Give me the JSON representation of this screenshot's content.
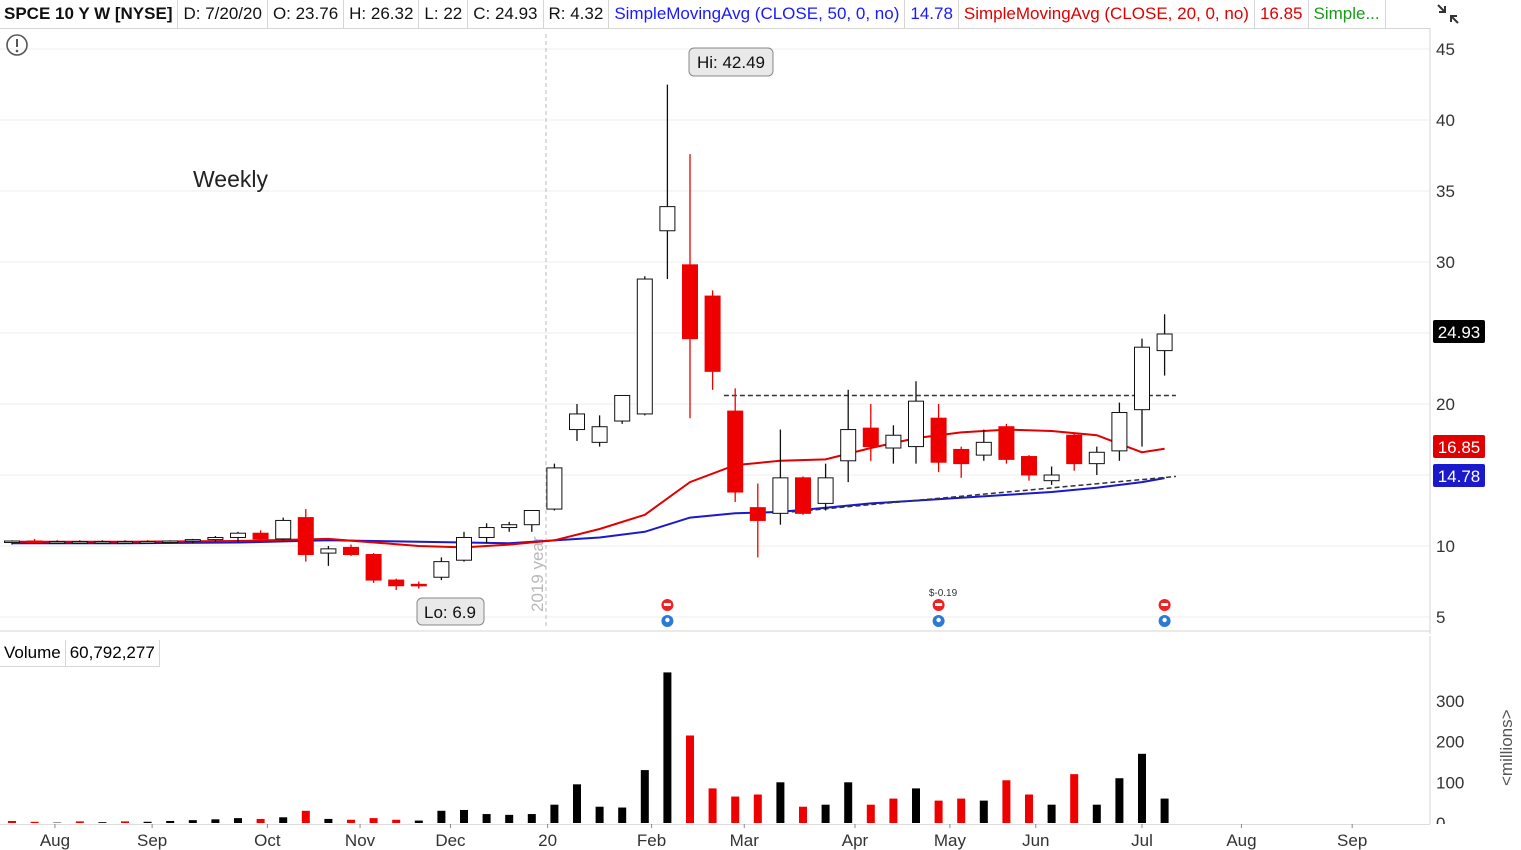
{
  "header": {
    "symbol": "SPCE 10 Y W [NYSE]",
    "date": "D: 7/20/20",
    "open": "O: 23.76",
    "high": "H: 26.32",
    "low": "L: 22",
    "close": "C: 24.93",
    "range": "R: 4.32",
    "sma50_label": "SimpleMovingAvg (CLOSE, 50, 0, no)",
    "sma50_value": "14.78",
    "sma20_label": "SimpleMovingAvg (CLOSE, 20, 0, no)",
    "sma20_value": "16.85",
    "sma_more": "Simple..."
  },
  "colors": {
    "up": "#ffffff",
    "down": "#ee0000",
    "sma20": "#e00000",
    "sma50": "#1a1acc",
    "grid": "#dddddd",
    "volume_up": "#000000",
    "volume_down": "#ee0000"
  },
  "annotations": {
    "weekly": "Weekly",
    "hi": "Hi: 42.49",
    "lo": "Lo: 6.9",
    "year_marker": "2019 year",
    "dividend": "$-0.19",
    "last_price": "24.93",
    "sma20_tag": "16.85",
    "sma50_tag": "14.78"
  },
  "volume": {
    "label": "Volume",
    "value": "60,792,277",
    "unit_label": "<millions>"
  },
  "chart_data": [
    {
      "type": "candlestick",
      "title": "SPCE 10 Y W [NYSE]",
      "y_ticks": [
        5,
        10,
        15,
        20,
        25,
        30,
        35,
        40,
        45
      ],
      "y_tick_labels": [
        "5",
        "10",
        "20",
        "30",
        "35",
        "40",
        "45"
      ],
      "ylim": [
        4.5,
        45.5
      ],
      "x_tick_labels": [
        "Aug",
        "Sep",
        "Oct",
        "Nov",
        "Dec",
        "20",
        "Feb",
        "Mar",
        "Apr",
        "May",
        "Jun",
        "Jul",
        "Aug",
        "Sep"
      ],
      "candles": [
        {
          "date": "2019-07-22",
          "o": 10.3,
          "h": 10.4,
          "l": 10.1,
          "c": 10.35
        },
        {
          "date": "2019-07-29",
          "o": 10.35,
          "h": 10.5,
          "l": 10.2,
          "c": 10.3
        },
        {
          "date": "2019-08-05",
          "o": 10.3,
          "h": 10.4,
          "l": 10.2,
          "c": 10.3
        },
        {
          "date": "2019-08-12",
          "o": 10.3,
          "h": 10.4,
          "l": 10.15,
          "c": 10.3
        },
        {
          "date": "2019-08-19",
          "o": 10.3,
          "h": 10.4,
          "l": 10.2,
          "c": 10.3
        },
        {
          "date": "2019-08-26",
          "o": 10.3,
          "h": 10.4,
          "l": 10.2,
          "c": 10.3
        },
        {
          "date": "2019-09-02",
          "o": 10.3,
          "h": 10.4,
          "l": 10.2,
          "c": 10.3
        },
        {
          "date": "2019-09-09",
          "o": 10.3,
          "h": 10.4,
          "l": 10.2,
          "c": 10.35
        },
        {
          "date": "2019-09-16",
          "o": 10.35,
          "h": 10.5,
          "l": 10.2,
          "c": 10.45
        },
        {
          "date": "2019-09-23",
          "o": 10.45,
          "h": 10.7,
          "l": 10.3,
          "c": 10.6
        },
        {
          "date": "2019-09-30",
          "o": 10.6,
          "h": 11.0,
          "l": 10.3,
          "c": 10.9
        },
        {
          "date": "2019-10-07",
          "o": 10.9,
          "h": 11.1,
          "l": 10.4,
          "c": 10.5
        },
        {
          "date": "2019-10-14",
          "o": 10.5,
          "h": 12.0,
          "l": 10.4,
          "c": 11.8
        },
        {
          "date": "2019-10-21",
          "o": 12.0,
          "h": 12.6,
          "l": 8.9,
          "c": 9.4
        },
        {
          "date": "2019-10-28",
          "o": 9.5,
          "h": 10.0,
          "l": 8.6,
          "c": 9.8
        },
        {
          "date": "2019-11-04",
          "o": 9.9,
          "h": 10.1,
          "l": 9.3,
          "c": 9.4
        },
        {
          "date": "2019-11-11",
          "o": 9.4,
          "h": 9.5,
          "l": 7.4,
          "c": 7.6
        },
        {
          "date": "2019-11-18",
          "o": 7.6,
          "h": 7.7,
          "l": 6.9,
          "c": 7.2
        },
        {
          "date": "2019-11-25",
          "o": 7.3,
          "h": 7.5,
          "l": 7.0,
          "c": 7.2
        },
        {
          "date": "2019-12-02",
          "o": 7.8,
          "h": 9.2,
          "l": 7.6,
          "c": 8.9
        },
        {
          "date": "2019-12-09",
          "o": 9.0,
          "h": 11.0,
          "l": 8.9,
          "c": 10.6
        },
        {
          "date": "2019-12-16",
          "o": 10.6,
          "h": 11.6,
          "l": 10.2,
          "c": 11.3
        },
        {
          "date": "2019-12-23",
          "o": 11.3,
          "h": 11.7,
          "l": 11.0,
          "c": 11.5
        },
        {
          "date": "2019-12-30",
          "o": 11.5,
          "h": 12.5,
          "l": 11.0,
          "c": 12.5
        },
        {
          "date": "2020-01-06",
          "o": 12.6,
          "h": 15.8,
          "l": 12.5,
          "c": 15.5
        },
        {
          "date": "2020-01-13",
          "o": 18.2,
          "h": 20.0,
          "l": 17.4,
          "c": 19.3
        },
        {
          "date": "2020-01-20",
          "o": 17.3,
          "h": 19.2,
          "l": 17.0,
          "c": 18.4
        },
        {
          "date": "2020-01-27",
          "o": 18.8,
          "h": 20.2,
          "l": 18.6,
          "c": 20.6
        },
        {
          "date": "2020-02-03",
          "o": 19.3,
          "h": 29.0,
          "l": 19.2,
          "c": 28.8
        },
        {
          "date": "2020-02-10",
          "o": 32.2,
          "h": 42.49,
          "l": 28.8,
          "c": 33.9
        },
        {
          "date": "2020-02-17",
          "o": 29.8,
          "h": 37.6,
          "l": 19.0,
          "c": 24.6
        },
        {
          "date": "2020-02-24",
          "o": 27.6,
          "h": 28.0,
          "l": 21.0,
          "c": 22.3
        },
        {
          "date": "2020-03-02",
          "o": 19.5,
          "h": 21.1,
          "l": 13.1,
          "c": 13.8
        },
        {
          "date": "2020-03-09",
          "o": 12.7,
          "h": 14.4,
          "l": 9.2,
          "c": 11.8
        },
        {
          "date": "2020-03-16",
          "o": 12.3,
          "h": 18.2,
          "l": 11.5,
          "c": 14.8
        },
        {
          "date": "2020-03-23",
          "o": 14.8,
          "h": 14.9,
          "l": 12.2,
          "c": 12.3
        },
        {
          "date": "2020-03-30",
          "o": 13.0,
          "h": 15.8,
          "l": 12.5,
          "c": 14.8
        },
        {
          "date": "2020-04-06",
          "o": 16.0,
          "h": 21.0,
          "l": 14.5,
          "c": 18.2
        },
        {
          "date": "2020-04-13",
          "o": 18.3,
          "h": 20.0,
          "l": 16.0,
          "c": 17.0
        },
        {
          "date": "2020-04-20",
          "o": 16.9,
          "h": 18.5,
          "l": 15.8,
          "c": 17.8
        },
        {
          "date": "2020-04-27",
          "o": 17.0,
          "h": 21.6,
          "l": 15.8,
          "c": 20.2
        },
        {
          "date": "2020-05-04",
          "o": 19.0,
          "h": 20.0,
          "l": 15.2,
          "c": 15.9
        },
        {
          "date": "2020-05-11",
          "o": 16.8,
          "h": 17.0,
          "l": 14.8,
          "c": 15.8
        },
        {
          "date": "2020-05-18",
          "o": 16.4,
          "h": 18.2,
          "l": 16.0,
          "c": 17.3
        },
        {
          "date": "2020-05-25",
          "o": 18.4,
          "h": 18.6,
          "l": 15.8,
          "c": 16.1
        },
        {
          "date": "2020-06-01",
          "o": 16.3,
          "h": 16.4,
          "l": 14.6,
          "c": 15.0
        },
        {
          "date": "2020-06-08",
          "o": 14.6,
          "h": 15.6,
          "l": 14.3,
          "c": 15.0
        },
        {
          "date": "2020-06-15",
          "o": 17.8,
          "h": 17.9,
          "l": 15.3,
          "c": 15.8
        },
        {
          "date": "2020-06-22",
          "o": 15.8,
          "h": 17.0,
          "l": 15.0,
          "c": 16.6
        },
        {
          "date": "2020-06-29",
          "o": 16.7,
          "h": 20.1,
          "l": 16.0,
          "c": 19.4
        },
        {
          "date": "2020-07-06",
          "o": 19.6,
          "h": 24.6,
          "l": 17.0,
          "c": 24.0
        },
        {
          "date": "2020-07-13",
          "o": 23.76,
          "h": 26.32,
          "l": 22.0,
          "c": 24.93
        }
      ],
      "sma20": {
        "name": "SimpleMovingAvg (CLOSE, 20, 0, no)",
        "last": 16.85,
        "points": [
          [
            0,
            10.3
          ],
          [
            5,
            10.3
          ],
          [
            10,
            10.35
          ],
          [
            14,
            10.5
          ],
          [
            18,
            10.0
          ],
          [
            20,
            9.9
          ],
          [
            22,
            10.1
          ],
          [
            24,
            10.4
          ],
          [
            26,
            11.2
          ],
          [
            28,
            12.2
          ],
          [
            30,
            14.5
          ],
          [
            32,
            15.7
          ],
          [
            34,
            16.0
          ],
          [
            36,
            16.1
          ],
          [
            38,
            16.9
          ],
          [
            40,
            17.6
          ],
          [
            42,
            18.0
          ],
          [
            44,
            18.2
          ],
          [
            46,
            18.1
          ],
          [
            48,
            17.8
          ],
          [
            49,
            17.2
          ],
          [
            50,
            16.6
          ],
          [
            51,
            16.85
          ]
        ]
      },
      "sma50": {
        "name": "SimpleMovingAvg (CLOSE, 50, 0, no)",
        "last": 14.78,
        "points": [
          [
            0,
            10.2
          ],
          [
            5,
            10.2
          ],
          [
            10,
            10.25
          ],
          [
            14,
            10.4
          ],
          [
            18,
            10.3
          ],
          [
            22,
            10.2
          ],
          [
            26,
            10.6
          ],
          [
            28,
            11.0
          ],
          [
            30,
            12.0
          ],
          [
            32,
            12.3
          ],
          [
            34,
            12.4
          ],
          [
            36,
            12.7
          ],
          [
            38,
            13.0
          ],
          [
            40,
            13.2
          ],
          [
            42,
            13.4
          ],
          [
            44,
            13.6
          ],
          [
            46,
            13.8
          ],
          [
            48,
            14.1
          ],
          [
            50,
            14.5
          ],
          [
            51,
            14.78
          ]
        ]
      },
      "resistance_line": {
        "value": 20.6,
        "from": 31.5,
        "to": 51.5
      },
      "support_line": {
        "from": [
          34.5,
          12.4
        ],
        "to": [
          51.5,
          14.9
        ]
      },
      "markers": [
        29,
        41,
        51
      ]
    },
    {
      "type": "bar",
      "title": "Volume",
      "ylabel": "<millions>",
      "y_ticks": [
        0,
        100,
        200,
        300
      ],
      "y_tick_labels": [
        "100",
        "200",
        "300"
      ],
      "ylim": [
        0,
        380
      ],
      "series": [
        {
          "values": [
            5,
            3,
            1,
            4,
            2,
            4,
            3,
            5,
            7,
            9,
            12,
            10,
            14,
            30,
            10,
            8,
            12,
            8,
            6,
            30,
            32,
            22,
            20,
            22,
            45,
            95,
            40,
            38,
            130,
            370,
            215,
            85,
            65,
            70,
            100,
            40,
            45,
            100,
            45,
            60,
            85,
            55,
            60,
            55,
            105,
            70,
            45,
            120,
            45,
            110,
            170,
            60
          ],
          "down": [
            true,
            true,
            false,
            true,
            false,
            true,
            false,
            false,
            false,
            false,
            false,
            true,
            false,
            true,
            false,
            true,
            true,
            true,
            false,
            false,
            false,
            false,
            false,
            false,
            false,
            false,
            false,
            false,
            false,
            false,
            true,
            true,
            true,
            true,
            false,
            true,
            false,
            false,
            true,
            true,
            false,
            true,
            true,
            false,
            true,
            true,
            false,
            true,
            false,
            false,
            false,
            false
          ]
        }
      ]
    }
  ]
}
